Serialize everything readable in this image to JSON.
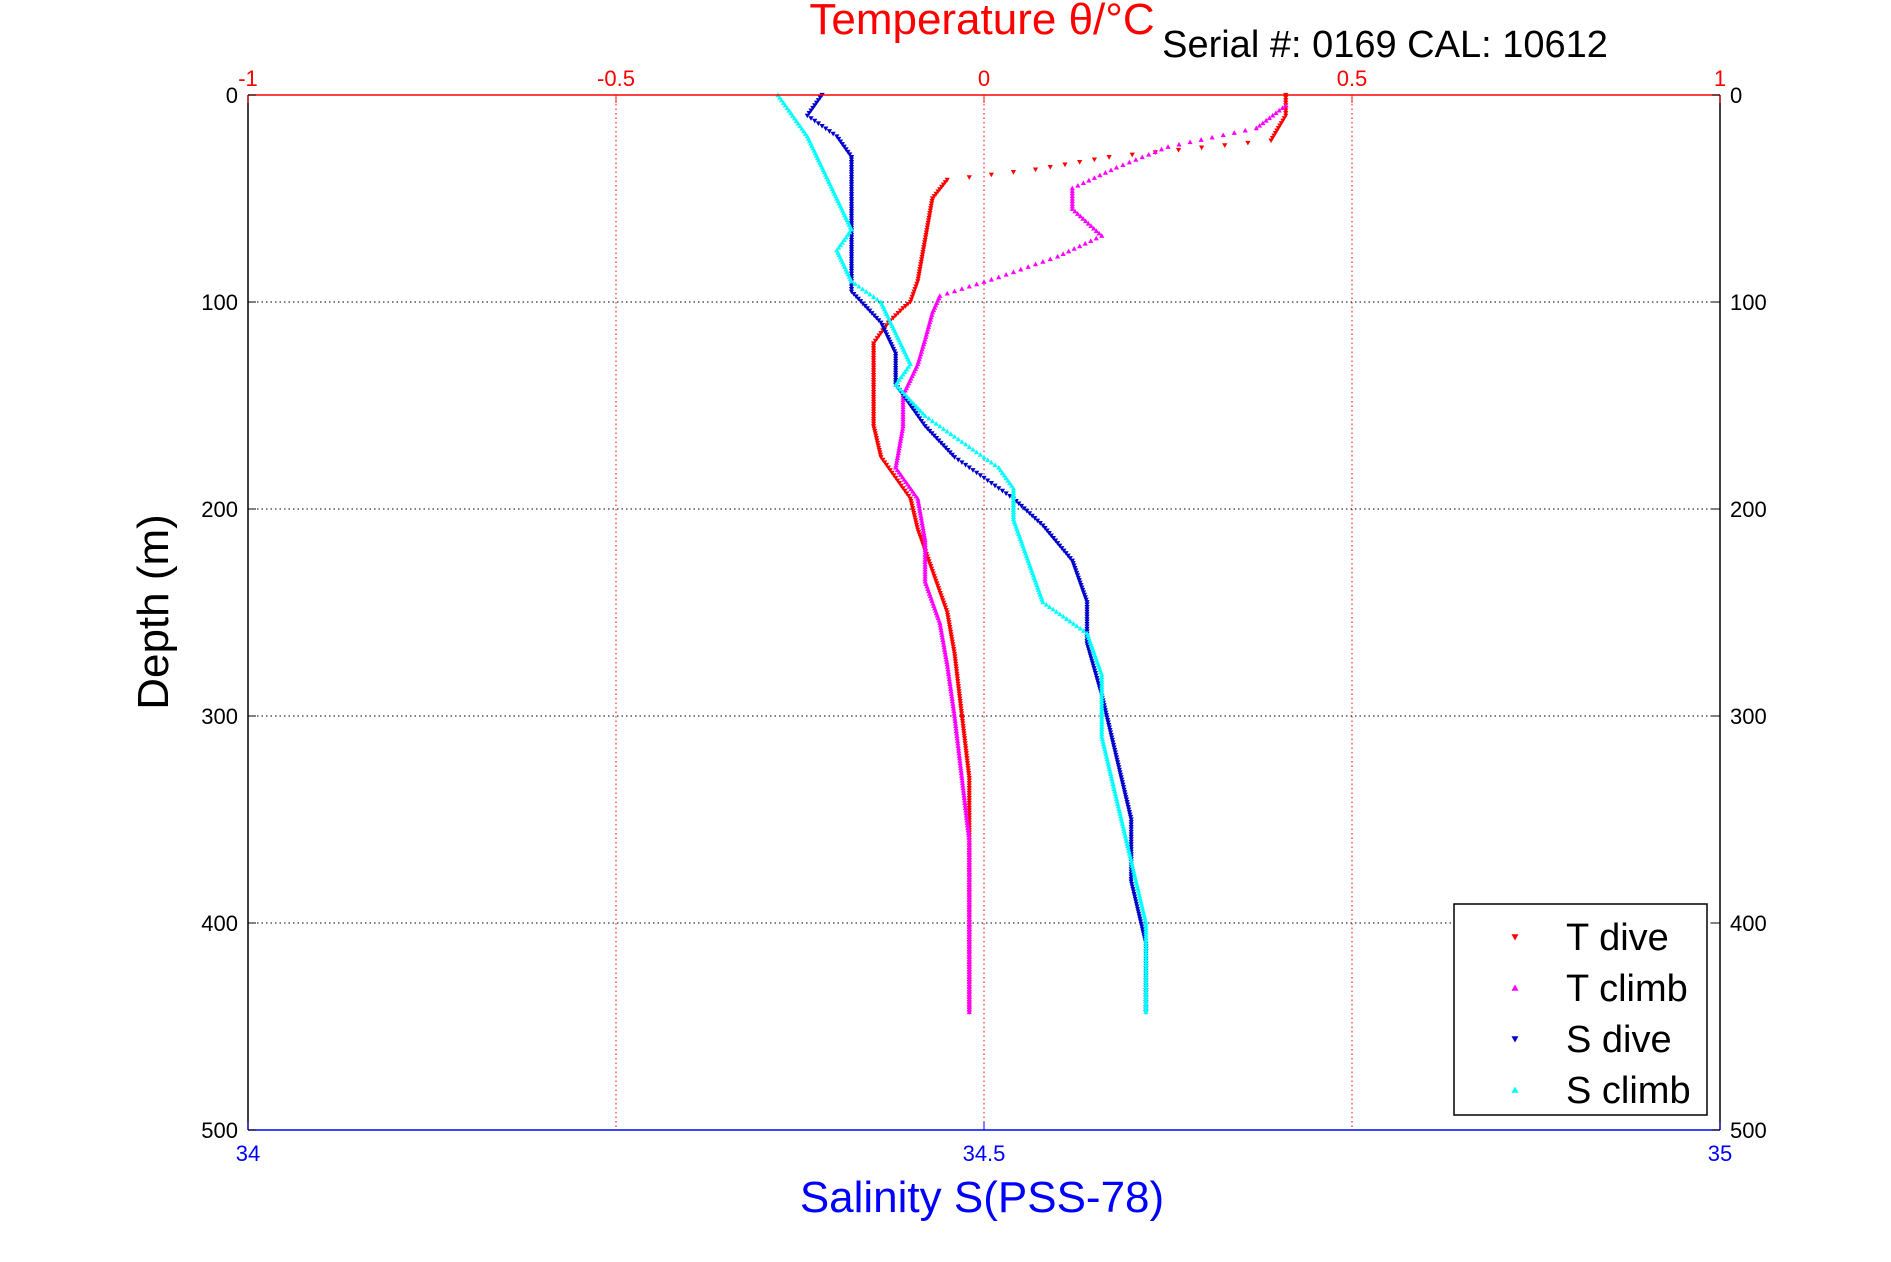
{
  "chart_data": {
    "type": "scatter",
    "title": "Temperature θ/°C",
    "serial": "Serial #: 0169 CAL: 10612",
    "xlabel": "Salinity S(PSS-78)",
    "ylabel": "Depth (m)",
    "temperature_axis": {
      "range": [
        -1,
        1
      ],
      "ticks": [
        -1,
        -0.5,
        0,
        0.5,
        1
      ],
      "tick_labels": [
        "-1",
        "-0.5",
        "0",
        "0.5",
        "1"
      ]
    },
    "salinity_axis": {
      "range": [
        34,
        35
      ],
      "ticks": [
        34,
        34.5,
        35
      ],
      "tick_labels": [
        "34",
        "34.5",
        "35"
      ]
    },
    "depth_axis": {
      "range": [
        0,
        500
      ],
      "reversed": true,
      "ticks": [
        0,
        100,
        200,
        300,
        400,
        500
      ],
      "tick_labels": [
        "0",
        "100",
        "200",
        "300",
        "400",
        "500"
      ]
    },
    "grid": true,
    "legend_position": "bottom-right",
    "series": [
      {
        "name": "T dive",
        "axis": "temperature",
        "color": "#ff0000",
        "marker": "triangle-down",
        "points": [
          [
            0.41,
            0
          ],
          [
            0.41,
            10
          ],
          [
            0.39,
            22
          ],
          [
            0.17,
            30
          ],
          [
            0.07,
            36
          ],
          [
            -0.05,
            41
          ],
          [
            -0.07,
            50
          ],
          [
            -0.08,
            70
          ],
          [
            -0.09,
            90
          ],
          [
            -0.1,
            100
          ],
          [
            -0.11,
            103
          ],
          [
            -0.13,
            110
          ],
          [
            -0.15,
            120
          ],
          [
            -0.15,
            140
          ],
          [
            -0.15,
            160
          ],
          [
            -0.14,
            175
          ],
          [
            -0.12,
            185
          ],
          [
            -0.1,
            195
          ],
          [
            -0.09,
            210
          ],
          [
            -0.07,
            230
          ],
          [
            -0.05,
            250
          ],
          [
            -0.04,
            270
          ],
          [
            -0.03,
            300
          ],
          [
            -0.02,
            330
          ],
          [
            -0.02,
            360
          ],
          [
            -0.02,
            390
          ],
          [
            -0.02,
            420
          ],
          [
            -0.02,
            443
          ]
        ]
      },
      {
        "name": "T climb",
        "axis": "temperature",
        "color": "#ff00ff",
        "marker": "triangle-up",
        "points": [
          [
            0.41,
            5
          ],
          [
            0.37,
            16
          ],
          [
            0.25,
            25
          ],
          [
            0.18,
            35
          ],
          [
            0.12,
            45
          ],
          [
            0.12,
            55
          ],
          [
            0.16,
            68
          ],
          [
            0.1,
            78
          ],
          [
            0.02,
            88
          ],
          [
            -0.06,
            97
          ],
          [
            -0.07,
            105
          ],
          [
            -0.08,
            118
          ],
          [
            -0.09,
            130
          ],
          [
            -0.11,
            145
          ],
          [
            -0.11,
            160
          ],
          [
            -0.12,
            180
          ],
          [
            -0.09,
            195
          ],
          [
            -0.08,
            215
          ],
          [
            -0.08,
            235
          ],
          [
            -0.06,
            255
          ],
          [
            -0.05,
            275
          ],
          [
            -0.04,
            300
          ],
          [
            -0.03,
            330
          ],
          [
            -0.02,
            360
          ],
          [
            -0.02,
            390
          ],
          [
            -0.02,
            420
          ],
          [
            -0.02,
            443
          ]
        ]
      },
      {
        "name": "S dive",
        "axis": "salinity",
        "color": "#0000cc",
        "marker": "triangle-down",
        "points": [
          [
            34.39,
            0
          ],
          [
            34.38,
            10
          ],
          [
            34.4,
            20
          ],
          [
            34.41,
            30
          ],
          [
            34.41,
            42
          ],
          [
            34.41,
            55
          ],
          [
            34.41,
            70
          ],
          [
            34.41,
            85
          ],
          [
            34.41,
            95
          ],
          [
            34.43,
            110
          ],
          [
            34.44,
            125
          ],
          [
            34.44,
            140
          ],
          [
            34.45,
            150
          ],
          [
            34.46,
            160
          ],
          [
            34.48,
            175
          ],
          [
            34.5,
            185
          ],
          [
            34.52,
            195
          ],
          [
            34.54,
            208
          ],
          [
            34.56,
            225
          ],
          [
            34.57,
            245
          ],
          [
            34.57,
            265
          ],
          [
            34.58,
            290
          ],
          [
            34.59,
            320
          ],
          [
            34.6,
            350
          ],
          [
            34.6,
            380
          ],
          [
            34.61,
            410
          ],
          [
            34.61,
            443
          ]
        ]
      },
      {
        "name": "S climb",
        "axis": "salinity",
        "color": "#00ffff",
        "marker": "triangle-up",
        "points": [
          [
            34.36,
            0
          ],
          [
            34.37,
            10
          ],
          [
            34.38,
            20
          ],
          [
            34.39,
            35
          ],
          [
            34.4,
            50
          ],
          [
            34.41,
            65
          ],
          [
            34.4,
            75
          ],
          [
            34.41,
            90
          ],
          [
            34.43,
            100
          ],
          [
            34.44,
            115
          ],
          [
            34.45,
            130
          ],
          [
            34.44,
            140
          ],
          [
            34.46,
            155
          ],
          [
            34.48,
            165
          ],
          [
            34.5,
            175
          ],
          [
            34.51,
            180
          ],
          [
            34.52,
            190
          ],
          [
            34.52,
            205
          ],
          [
            34.53,
            225
          ],
          [
            34.54,
            245
          ],
          [
            34.57,
            260
          ],
          [
            34.58,
            280
          ],
          [
            34.58,
            310
          ],
          [
            34.59,
            340
          ],
          [
            34.6,
            370
          ],
          [
            34.61,
            400
          ],
          [
            34.61,
            425
          ],
          [
            34.61,
            443
          ]
        ]
      }
    ]
  }
}
